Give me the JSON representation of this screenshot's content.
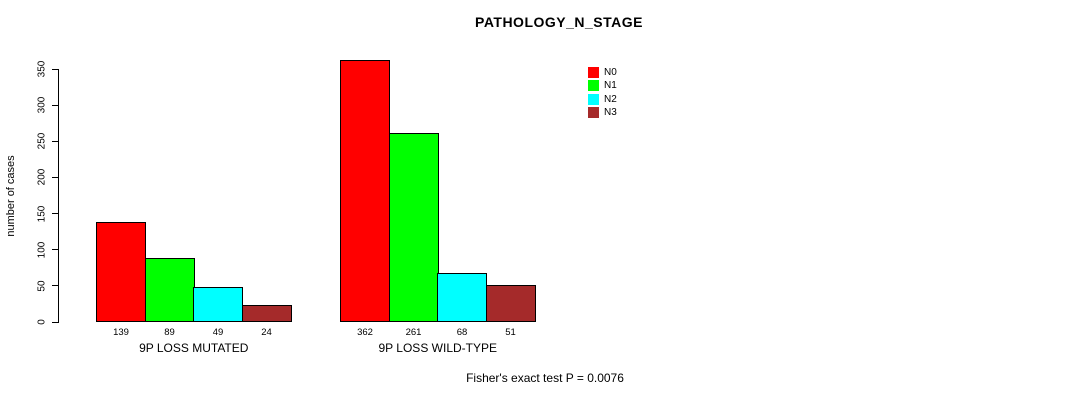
{
  "chart_data": {
    "type": "bar",
    "title": "PATHOLOGY_N_STAGE",
    "xlabel": "",
    "ylabel": "number of cases",
    "ylim": [
      0,
      350
    ],
    "yticks": [
      0,
      50,
      100,
      150,
      200,
      250,
      300,
      350
    ],
    "grid": false,
    "legend_position": "top-right",
    "categories": [
      "9P LOSS MUTATED",
      "9P LOSS WILD-TYPE"
    ],
    "series": [
      {
        "name": "N0",
        "color": "#FF0000",
        "values": [
          139,
          362
        ]
      },
      {
        "name": "N1",
        "color": "#00FF00",
        "values": [
          89,
          261
        ]
      },
      {
        "name": "N2",
        "color": "#00FFFF",
        "values": [
          49,
          68
        ]
      },
      {
        "name": "N3",
        "color": "#A52A2A",
        "values": [
          24,
          51
        ]
      }
    ],
    "groups": [
      {
        "label": "9P LOSS MUTATED",
        "values": [
          139,
          89,
          49,
          24
        ]
      },
      {
        "label": "9P LOSS WILD-TYPE",
        "values": [
          362,
          261,
          68,
          51
        ]
      }
    ],
    "bar_value_labels_shown": true,
    "annotation": "Fisher's exact test P = 0.0076"
  }
}
